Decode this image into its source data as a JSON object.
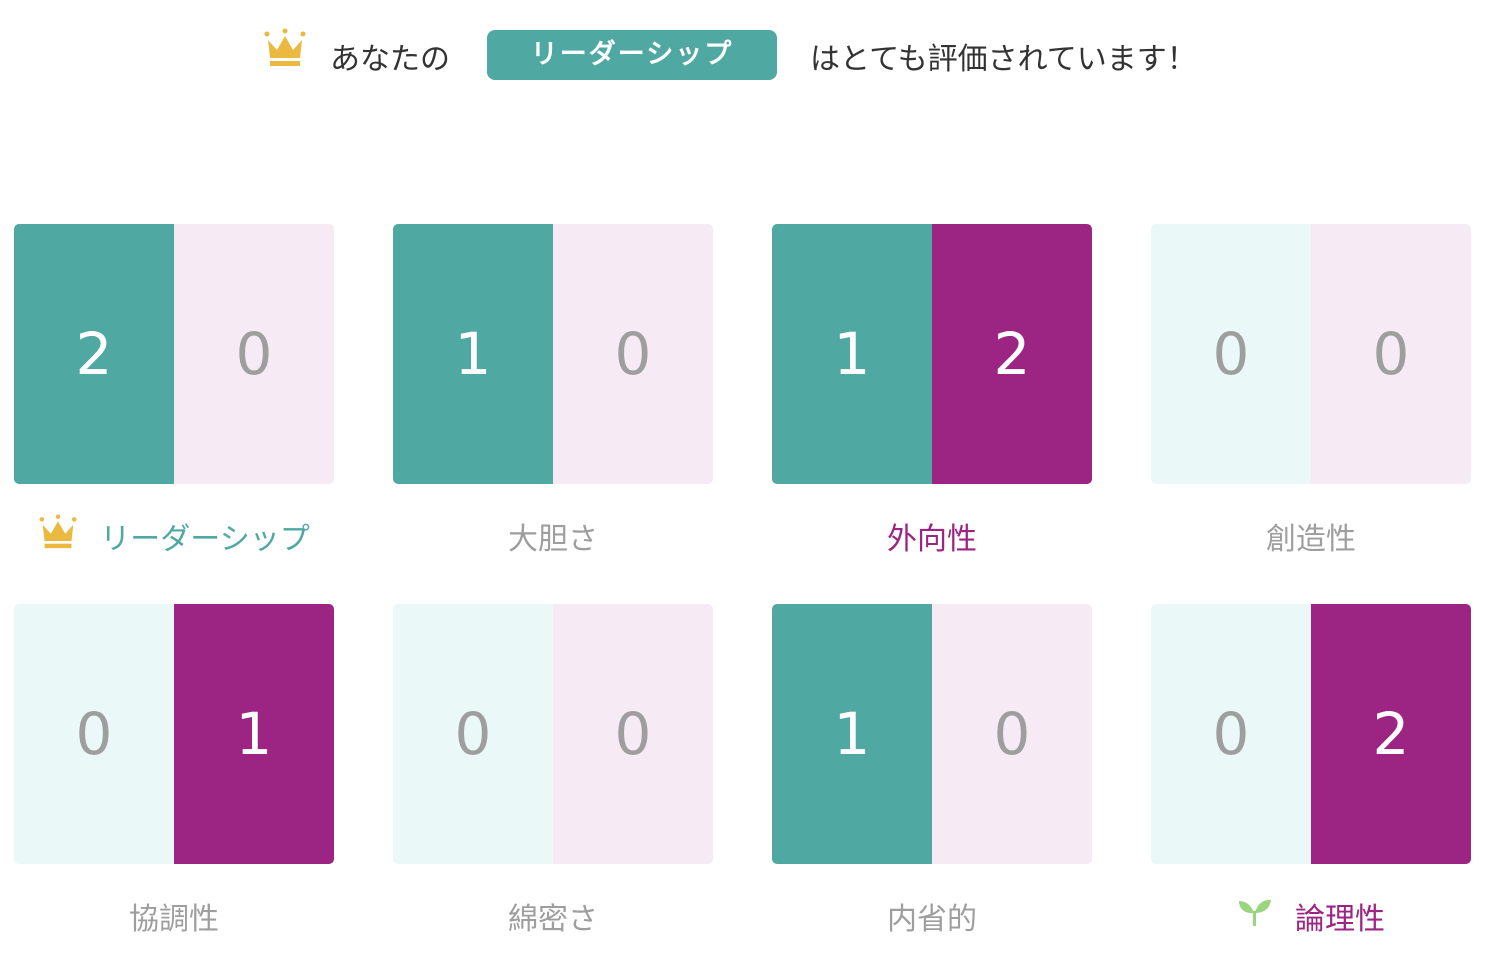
{
  "header": {
    "prefix": "あなたの",
    "highlight": "リーダーシップ",
    "suffix": "はとても評価されています！",
    "icon": "crown-icon"
  },
  "colors": {
    "teal": "#50a8a2",
    "purple": "#9c2583",
    "light_teal": "#ebf8f8",
    "light_pink": "#f6eaf5",
    "crown": "#ebb93f",
    "sprout": "#9ad67f"
  },
  "traits": [
    {
      "label": "リーダーシップ",
      "left": "2",
      "right": "0",
      "left_on": true,
      "right_on": false,
      "state": "top",
      "icon": "crown-icon"
    },
    {
      "label": "大胆さ",
      "left": "1",
      "right": "0",
      "left_on": true,
      "right_on": false,
      "state": "normal"
    },
    {
      "label": "外向性",
      "left": "1",
      "right": "2",
      "left_on": true,
      "right_on": true,
      "state": "highlight"
    },
    {
      "label": "創造性",
      "left": "0",
      "right": "0",
      "left_on": false,
      "right_on": false,
      "state": "normal"
    },
    {
      "label": "協調性",
      "left": "0",
      "right": "1",
      "left_on": false,
      "right_on": true,
      "state": "normal"
    },
    {
      "label": "綿密さ",
      "left": "0",
      "right": "0",
      "left_on": false,
      "right_on": false,
      "state": "normal"
    },
    {
      "label": "内省的",
      "left": "1",
      "right": "0",
      "left_on": true,
      "right_on": false,
      "state": "normal"
    },
    {
      "label": "論理性",
      "left": "0",
      "right": "2",
      "left_on": false,
      "right_on": true,
      "state": "growth",
      "icon": "sprout-icon"
    }
  ]
}
